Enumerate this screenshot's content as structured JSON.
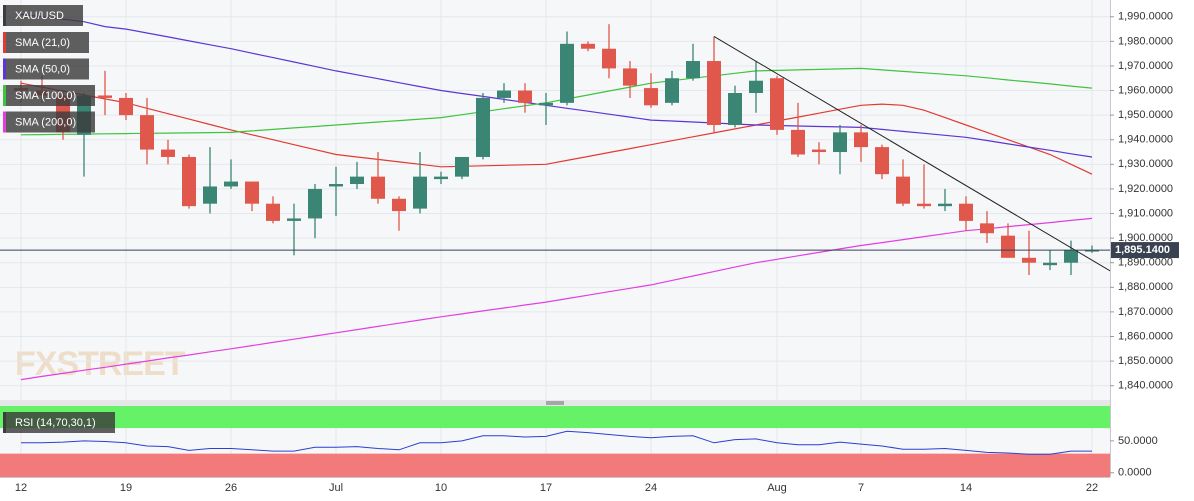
{
  "chart_data": {
    "type": "candlestick",
    "symbol": "XAU/USD",
    "categories": [
      "12",
      null,
      null,
      null,
      null,
      "19",
      null,
      null,
      null,
      null,
      "26",
      null,
      null,
      null,
      null,
      "Jul",
      null,
      null,
      null,
      null,
      "10",
      null,
      null,
      null,
      null,
      "17",
      null,
      null,
      null,
      null,
      "24",
      null,
      null,
      null,
      null,
      null,
      "Aug",
      null,
      null,
      null,
      "7",
      null,
      null,
      null,
      null,
      "14",
      null,
      null,
      null,
      null,
      null,
      "22"
    ],
    "open": [
      1961,
      1960,
      1958,
      1942,
      1958,
      1957,
      1950,
      1936,
      1933,
      1914,
      1921,
      1923,
      1914,
      1907,
      1908,
      1921,
      1922,
      1925,
      1916,
      1912,
      1924,
      1925,
      1933,
      1957,
      1960,
      1954,
      1955,
      1979,
      1977,
      1969,
      1961,
      1955,
      1965,
      1972,
      1946,
      1959,
      1965,
      1944,
      1936,
      1935,
      1943,
      1937,
      1925,
      1914,
      1913,
      1914,
      1906,
      1901,
      1892,
      1889,
      1890,
      1895
    ],
    "high": [
      1964,
      1966,
      1960,
      1959,
      1968,
      1959,
      1957,
      1940,
      1934,
      1937,
      1932,
      1923,
      1917,
      1914,
      1922,
      1929,
      1931,
      1935,
      1917,
      1935,
      1927,
      1933,
      1959,
      1963,
      1963,
      1959,
      1984,
      1980,
      1987,
      1972,
      1967,
      1968,
      1979,
      1982,
      1962,
      1972,
      1966,
      1955,
      1939,
      1946,
      1946,
      1938,
      1932,
      1930,
      1920,
      1917,
      1911,
      1906,
      1903,
      1895,
      1899,
      1897
    ],
    "low": [
      1955,
      1955,
      1940,
      1925,
      1950,
      1948,
      1930,
      1930,
      1912,
      1910,
      1920,
      1911,
      1906,
      1893,
      1900,
      1909,
      1920,
      1914,
      1903,
      1910,
      1922,
      1924,
      1932,
      1955,
      1951,
      1946,
      1954,
      1976,
      1965,
      1957,
      1953,
      1954,
      1964,
      1943,
      1945,
      1951,
      1942,
      1933,
      1930,
      1926,
      1931,
      1924,
      1913,
      1912,
      1911,
      1903,
      1898,
      1892,
      1885,
      1887,
      1885,
      1894
    ],
    "close": [
      1960,
      1958,
      1943,
      1958,
      1957,
      1950,
      1936,
      1933,
      1913,
      1921,
      1923,
      1914,
      1907,
      1908,
      1920,
      1922,
      1925,
      1916,
      1911,
      1925,
      1925,
      1933,
      1957,
      1960,
      1955,
      1955,
      1979,
      1977,
      1969,
      1962,
      1954,
      1965,
      1972,
      1946,
      1959,
      1964,
      1944,
      1934,
      1935,
      1943,
      1937,
      1926,
      1914,
      1913,
      1914,
      1907,
      1902,
      1892,
      1890,
      1890,
      1895,
      1895.14
    ],
    "up_color": "#3b8574",
    "down_color": "#e0574b",
    "ylim": [
      1835,
      1996
    ],
    "yticks": [
      {
        "value": 1840,
        "label": "1,840.0000"
      },
      {
        "value": 1850,
        "label": "1,850.0000"
      },
      {
        "value": 1860,
        "label": "1,860.0000"
      },
      {
        "value": 1870,
        "label": "1,870.0000"
      },
      {
        "value": 1880,
        "label": "1,880.0000"
      },
      {
        "value": 1890,
        "label": "1,890.0000"
      },
      {
        "value": 1900,
        "label": "1,900.0000"
      },
      {
        "value": 1910,
        "label": "1,910.0000"
      },
      {
        "value": 1920,
        "label": "1,920.0000"
      },
      {
        "value": 1930,
        "label": "1,930.0000"
      },
      {
        "value": 1940,
        "label": "1,940.0000"
      },
      {
        "value": 1950,
        "label": "1,950.0000"
      },
      {
        "value": 1960,
        "label": "1,960.0000"
      },
      {
        "value": 1970,
        "label": "1,970.0000"
      },
      {
        "value": 1980,
        "label": "1,980.0000"
      },
      {
        "value": 1990,
        "label": "1,990.0000"
      }
    ],
    "grid": true,
    "series": [
      {
        "name": "SMA (21,0)",
        "color": "#e23b33",
        "values": [
          1963,
          1961.4,
          1959.8,
          1958.2,
          1956.6,
          1955,
          1952.8,
          1950.6,
          1948.4,
          1946.2,
          1944,
          1942,
          1940,
          1938,
          1936,
          1934,
          1933,
          1932,
          1931,
          1930,
          1929,
          1929.2,
          1929.4,
          1929.6,
          1929.8,
          1930,
          1931.6,
          1933.2,
          1934.8,
          1936.4,
          1938,
          1939.6,
          1941.2,
          1942.8,
          1944.4,
          1946,
          1947.6,
          1949.2,
          1950.8,
          1952.4,
          1954,
          1954.5,
          1954,
          1952,
          1949,
          1946,
          1943,
          1940,
          1937,
          1934,
          1930,
          1926
        ]
      },
      {
        "name": "SMA (50,0)",
        "color": "#5b36d4",
        "values": [
          1991,
          1990,
          1989,
          1988,
          1986,
          1985,
          1983.4,
          1981.8,
          1980.2,
          1978.6,
          1977,
          1975.2,
          1973.4,
          1971.6,
          1969.8,
          1968,
          1966.4,
          1964.8,
          1963.2,
          1961.6,
          1960,
          1958.8,
          1957.6,
          1956.4,
          1955.2,
          1954,
          1952.8,
          1951.6,
          1950.4,
          1949.2,
          1948,
          1947.6,
          1947.2,
          1946.8,
          1946.4,
          1946,
          1945.8,
          1945.6,
          1945.4,
          1945.2,
          1945,
          1944.2,
          1943.4,
          1942.6,
          1941.8,
          1941,
          1939.7,
          1938.3,
          1937,
          1935.7,
          1934.3,
          1933
        ]
      },
      {
        "name": "SMA (100,0)",
        "color": "#3ec43e",
        "values": [
          1942,
          1942.1,
          1942.2,
          1942.3,
          1942.4,
          1942.5,
          1942.6,
          1942.7,
          1942.8,
          1942.9,
          1943,
          1943.6,
          1944.2,
          1944.8,
          1945.4,
          1946,
          1946.6,
          1947.2,
          1947.8,
          1948.4,
          1949,
          1950.2,
          1951.4,
          1952.6,
          1953.8,
          1955,
          1956.6,
          1958.2,
          1959.8,
          1961.4,
          1963,
          1964,
          1965,
          1966,
          1967,
          1968,
          1968.2,
          1968.4,
          1968.6,
          1968.8,
          1969,
          1968.4,
          1967.8,
          1967.2,
          1966.6,
          1966,
          1965.2,
          1964.3,
          1963.5,
          1962.7,
          1961.8,
          1961
        ]
      },
      {
        "name": "SMA (200,0)",
        "color": "#e23fe0",
        "values": [
          1842.5,
          1843.8,
          1845,
          1846.3,
          1847.5,
          1848.8,
          1850,
          1851.3,
          1852.5,
          1853.8,
          1855,
          1856.3,
          1857.6,
          1858.9,
          1860.2,
          1861.5,
          1862.8,
          1864.1,
          1865.4,
          1866.7,
          1868,
          1869.2,
          1870.4,
          1871.6,
          1872.8,
          1874,
          1875.4,
          1876.8,
          1878.2,
          1879.6,
          1881,
          1882.8,
          1884.6,
          1886.4,
          1888.2,
          1890,
          1891.4,
          1892.8,
          1894.2,
          1895.6,
          1897,
          1898.2,
          1899.4,
          1900.6,
          1901.8,
          1903,
          1903.8,
          1904.7,
          1905.5,
          1906.3,
          1907.2,
          1908
        ]
      }
    ],
    "trendline": {
      "x": [
        33,
        52
      ],
      "values": [
        1982,
        1886
      ],
      "color": "#222222"
    },
    "last_price": {
      "value": 1895.14,
      "label": "1,895.1400"
    },
    "watermark": "FXSTREET",
    "indicator": {
      "type": "line",
      "name": "RSI (14,70,30,1)",
      "color": "#2b3fd1",
      "values": [
        47,
        47,
        48,
        50,
        49,
        47,
        42,
        41,
        35,
        38,
        38,
        36,
        34,
        34,
        40,
        40,
        41,
        38,
        36,
        47,
        47,
        50,
        58,
        58,
        56,
        57,
        65,
        63,
        60,
        57,
        55,
        57,
        58,
        47,
        52,
        53,
        47,
        44,
        44,
        48,
        45,
        42,
        37,
        37,
        38,
        35,
        32,
        31,
        29,
        29,
        34,
        34
      ],
      "overbought": 70,
      "oversold": 30,
      "ylim": [
        -5,
        103
      ],
      "yticks": [
        {
          "value": 50,
          "label": "50.0000"
        },
        {
          "value": 0,
          "label": "0.0000"
        }
      ]
    }
  }
}
